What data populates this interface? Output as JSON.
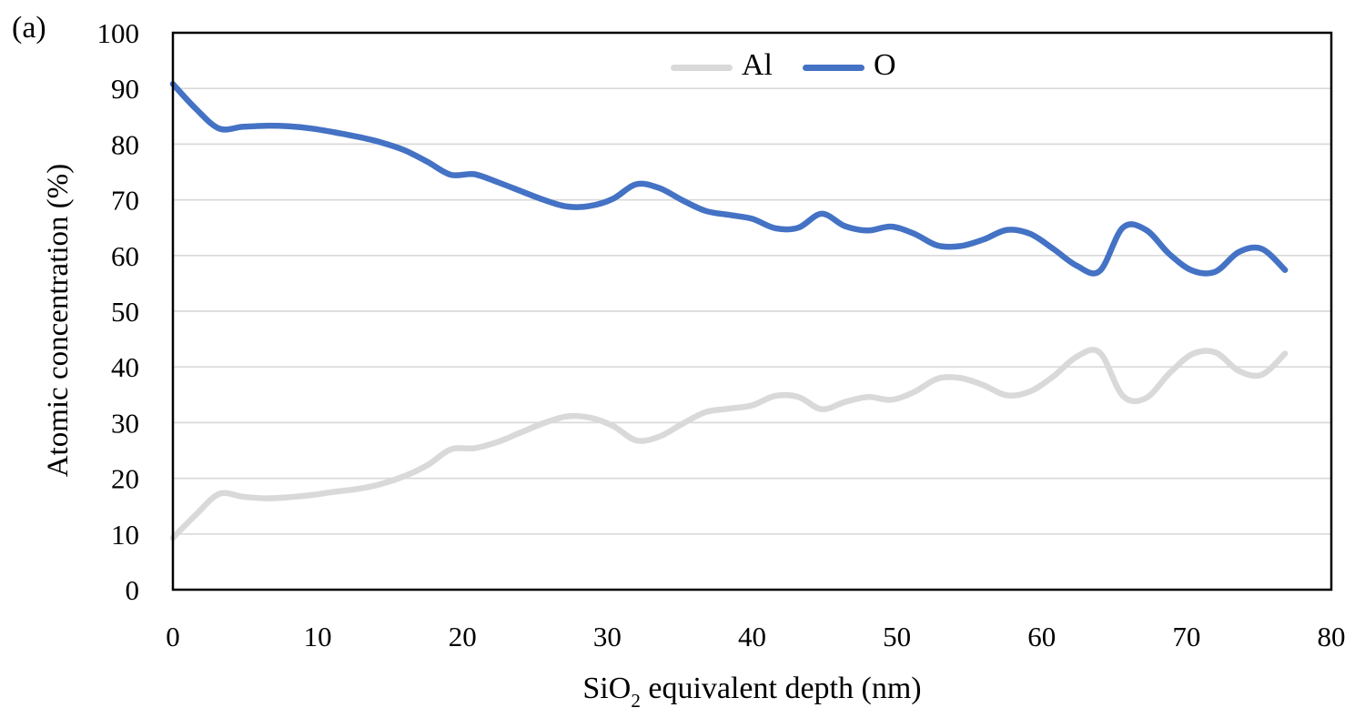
{
  "figure": {
    "panel_label": "(a)"
  },
  "chart_data": {
    "type": "line",
    "panel_label": "(a)",
    "xlabel": {
      "prefix": "SiO",
      "sub": "2",
      "suffix": " equivalent depth (nm)"
    },
    "ylabel": "Atomic concentration (%)",
    "xlim": [
      0,
      80
    ],
    "ylim": [
      0,
      100
    ],
    "xticks": [
      0,
      10,
      20,
      30,
      40,
      50,
      60,
      70,
      80
    ],
    "yticks": [
      0,
      10,
      20,
      30,
      40,
      50,
      60,
      70,
      80,
      90,
      100
    ],
    "grid": "horizontal-only",
    "grid_color": "#D9D9D9",
    "axis_color": "#000000",
    "tick_label_color": "#000000",
    "legend_position": "top-center",
    "x": [
      0,
      1.6,
      3.2,
      4.8,
      6.4,
      8,
      9.6,
      11.2,
      12.8,
      14.4,
      16,
      17.6,
      19.2,
      20.8,
      22.4,
      24,
      25.6,
      27.2,
      28.8,
      30.4,
      32,
      33.6,
      35.2,
      36.8,
      38.4,
      40,
      41.6,
      43.2,
      44.8,
      46.4,
      48,
      49.6,
      51.2,
      52.8,
      54.4,
      56,
      57.6,
      59.2,
      60.8,
      62.4,
      64,
      65.6,
      67.2,
      68.8,
      70.4,
      72,
      73.6,
      75.2,
      76.8
    ],
    "series": [
      {
        "name": "Al",
        "color": "#D9D9D9",
        "values": [
          9.3,
          13.5,
          17.2,
          16.7,
          16.4,
          16.6,
          17.0,
          17.6,
          18.1,
          19.0,
          20.4,
          22.4,
          25.2,
          25.4,
          26.5,
          28.2,
          29.9,
          31.1,
          30.9,
          29.4,
          26.8,
          27.5,
          29.8,
          31.9,
          32.5,
          33.1,
          34.8,
          34.6,
          32.4,
          33.7,
          34.6,
          34.1,
          35.5,
          37.9,
          38.0,
          36.7,
          34.9,
          35.6,
          38.3,
          41.8,
          42.6,
          34.8,
          34.4,
          38.8,
          42.3,
          42.6,
          39.3,
          38.6,
          42.4
        ]
      },
      {
        "name": "O",
        "color": "#4472C4",
        "values": [
          90.8,
          86.3,
          82.8,
          83.1,
          83.3,
          83.2,
          82.8,
          82.1,
          81.3,
          80.3,
          78.9,
          76.8,
          74.5,
          74.6,
          73.2,
          71.6,
          70.0,
          68.8,
          68.9,
          70.2,
          72.8,
          72.1,
          69.9,
          68.0,
          67.3,
          66.6,
          64.9,
          65.0,
          67.5,
          65.3,
          64.5,
          65.2,
          63.9,
          61.8,
          61.7,
          62.9,
          64.6,
          63.9,
          61.2,
          58.2,
          57.2,
          65.0,
          64.6,
          60.3,
          57.3,
          57.1,
          60.6,
          61.2,
          57.4
        ]
      }
    ]
  }
}
